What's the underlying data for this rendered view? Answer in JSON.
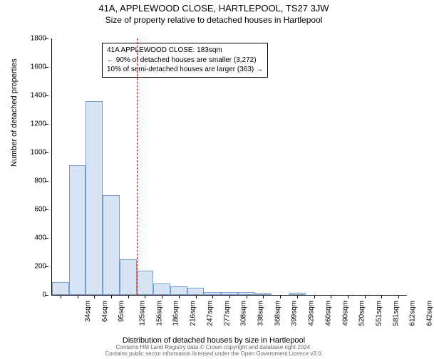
{
  "title": "41A, APPLEWOOD CLOSE, HARTLEPOOL, TS27 3JW",
  "subtitle": "Size of property relative to detached houses in Hartlepool",
  "chart": {
    "type": "histogram",
    "ylabel": "Number of detached properties",
    "xlabel": "Distribution of detached houses by size in Hartlepool",
    "ylim": [
      0,
      1800
    ],
    "ytick_step": 200,
    "bar_color": "#d6e4f5",
    "bar_border": "#7a9ec9",
    "background_color": "#ffffff",
    "axis_color": "#000000",
    "reference_line": {
      "x_category_index": 5,
      "color": "#ff0000",
      "style": "dashed"
    },
    "categories": [
      "34sqm",
      "64sqm",
      "95sqm",
      "125sqm",
      "156sqm",
      "186sqm",
      "216sqm",
      "247sqm",
      "277sqm",
      "308sqm",
      "338sqm",
      "368sqm",
      "399sqm",
      "429sqm",
      "460sqm",
      "490sqm",
      "520sqm",
      "551sqm",
      "581sqm",
      "612sqm",
      "642sqm"
    ],
    "values": [
      90,
      910,
      1360,
      700,
      250,
      170,
      80,
      60,
      50,
      20,
      20,
      20,
      10,
      0,
      15,
      0,
      0,
      0,
      0,
      0,
      0
    ],
    "info_box": {
      "lines": [
        "41A APPLEWOOD CLOSE: 183sqm",
        "← 90% of detached houses are smaller (3,272)",
        "10% of semi-detached houses are larger (363) →"
      ],
      "border_color": "#000000",
      "background_color": "#ffffff",
      "fontsize": 10
    },
    "title_fontsize": 13,
    "subtitle_fontsize": 12,
    "label_fontsize": 11,
    "tick_fontsize": 10
  },
  "footer": {
    "line1": "Contains HM Land Registry data © Crown copyright and database right 2024.",
    "line2": "Contains public sector information licensed under the Open Government Licence v3.0."
  }
}
